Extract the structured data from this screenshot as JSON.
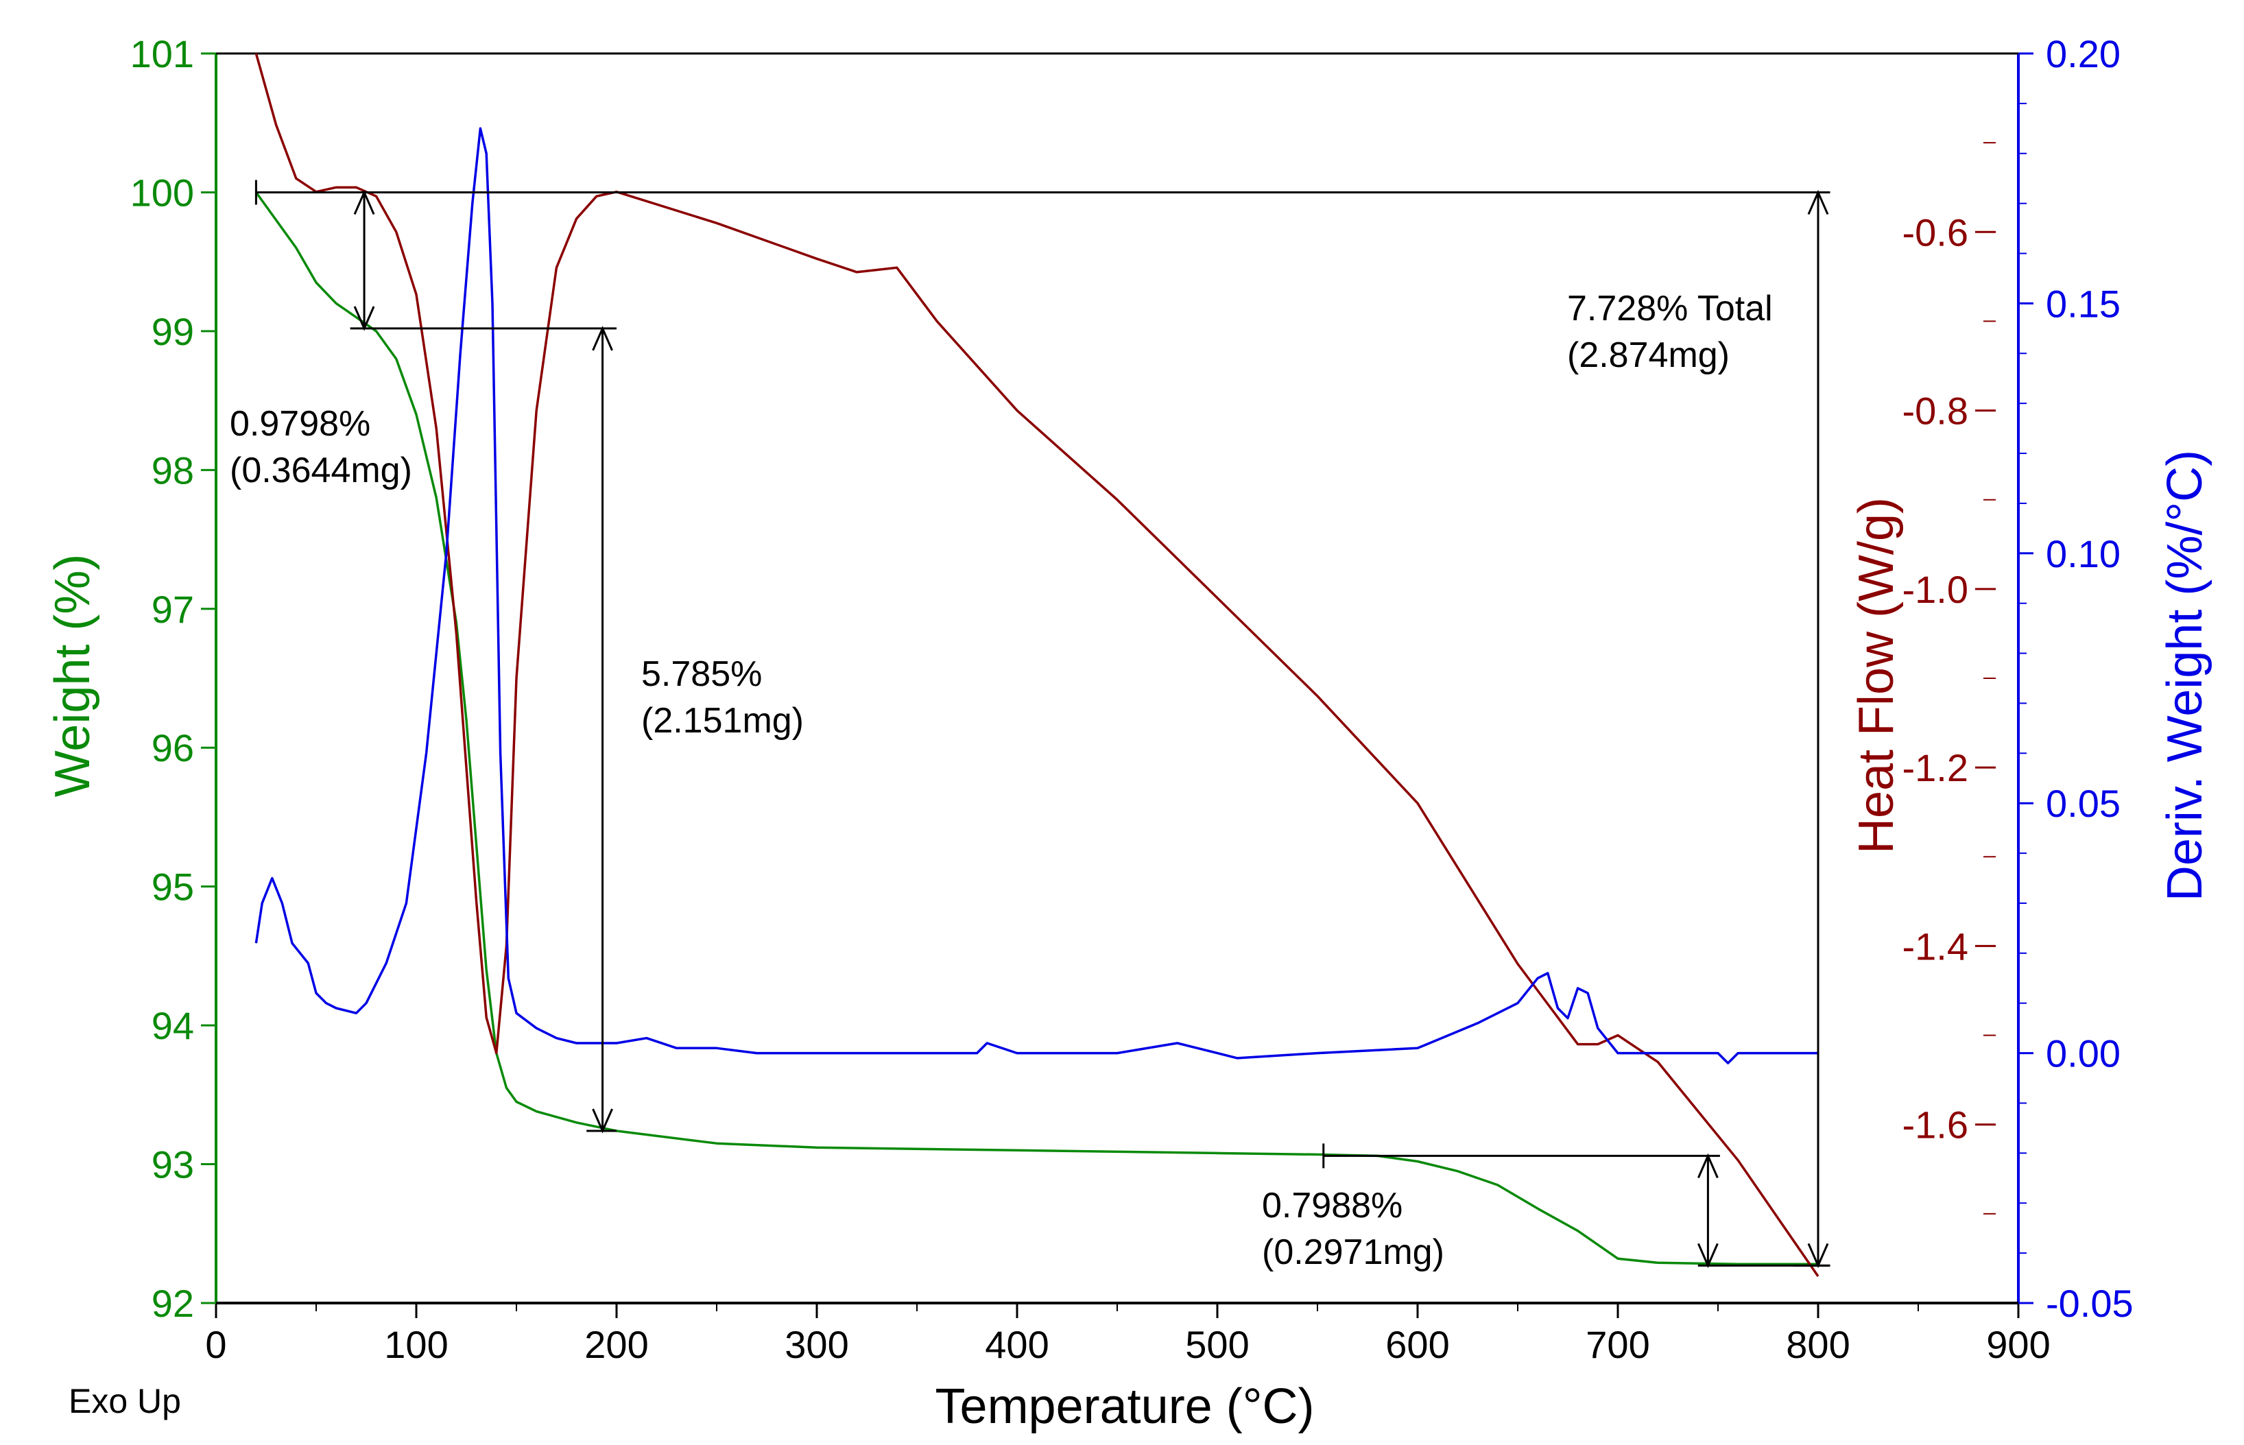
{
  "chart_data": {
    "type": "line",
    "corner_label": "Exo Up",
    "colors": {
      "weight": "#0a8a0a",
      "heat_flow": "#8b0000",
      "deriv": "#0000e6",
      "annotation": "#000000"
    },
    "x_axis": {
      "title": "Temperature (°C)",
      "range": [
        0,
        900
      ],
      "ticks": [
        0,
        100,
        200,
        300,
        400,
        500,
        600,
        700,
        800,
        900
      ],
      "tick_labels": [
        "0",
        "100",
        "200",
        "300",
        "400",
        "500",
        "600",
        "700",
        "800",
        "900"
      ]
    },
    "y_left": {
      "title": "Weight (%)",
      "range": [
        92,
        101
      ],
      "ticks": [
        92,
        93,
        94,
        95,
        96,
        97,
        98,
        99,
        100,
        101
      ],
      "tick_labels": [
        "92",
        "93",
        "94",
        "95",
        "96",
        "97",
        "98",
        "99",
        "100",
        "101"
      ]
    },
    "y_right_heat": {
      "title": "Heat Flow (W/g)",
      "range": [
        -1.8,
        -0.4
      ],
      "ticks": [
        -1.6,
        -1.4,
        -1.2,
        -1.0,
        -0.8,
        -0.6
      ],
      "tick_labels": [
        "-1.6",
        "-1.4",
        "-1.2",
        "-1.0",
        "-0.8",
        "-0.6"
      ]
    },
    "y_right_deriv": {
      "title": "Deriv. Weight (%/°C)",
      "range": [
        -0.05,
        0.2
      ],
      "ticks": [
        -0.05,
        0.0,
        0.05,
        0.1,
        0.15,
        0.2
      ],
      "tick_labels": [
        "-0.05",
        "0.00",
        "0.05",
        "0.10",
        "0.15",
        "0.20"
      ]
    },
    "series": [
      {
        "name": "Weight",
        "axis": "y_left",
        "x": [
          20,
          30,
          40,
          50,
          60,
          70,
          80,
          90,
          100,
          110,
          120,
          125,
          130,
          135,
          140,
          145,
          150,
          160,
          180,
          200,
          250,
          300,
          400,
          500,
          550,
          580,
          600,
          620,
          640,
          660,
          680,
          700,
          720,
          760,
          800
        ],
        "y": [
          100.0,
          99.8,
          99.6,
          99.35,
          99.2,
          99.1,
          99.0,
          98.8,
          98.4,
          97.8,
          96.9,
          96.2,
          95.3,
          94.4,
          93.8,
          93.55,
          93.45,
          93.38,
          93.3,
          93.24,
          93.15,
          93.12,
          93.1,
          93.08,
          93.07,
          93.06,
          93.02,
          92.95,
          92.85,
          92.68,
          92.52,
          92.32,
          92.29,
          92.28,
          92.28
        ]
      },
      {
        "name": "Heat Flow",
        "axis": "y_right_heat",
        "x": [
          20,
          30,
          40,
          50,
          60,
          70,
          80,
          90,
          100,
          110,
          120,
          130,
          135,
          140,
          145,
          150,
          160,
          170,
          180,
          190,
          200,
          250,
          300,
          320,
          340,
          360,
          400,
          450,
          500,
          550,
          600,
          650,
          670,
          680,
          690,
          700,
          720,
          760,
          800
        ],
        "y": [
          -0.4,
          -0.48,
          -0.54,
          -0.555,
          -0.55,
          -0.55,
          -0.56,
          -0.6,
          -0.67,
          -0.82,
          -1.05,
          -1.35,
          -1.48,
          -1.52,
          -1.4,
          -1.1,
          -0.8,
          -0.64,
          -0.585,
          -0.56,
          -0.555,
          -0.59,
          -0.63,
          -0.645,
          -0.64,
          -0.7,
          -0.8,
          -0.9,
          -1.01,
          -1.12,
          -1.24,
          -1.42,
          -1.48,
          -1.51,
          -1.51,
          -1.5,
          -1.53,
          -1.64,
          -1.77
        ]
      },
      {
        "name": "Deriv. Weight",
        "axis": "y_right_deriv",
        "x": [
          20,
          23,
          28,
          33,
          38,
          42,
          46,
          50,
          55,
          60,
          70,
          75,
          85,
          95,
          105,
          115,
          122,
          128,
          132,
          135,
          138,
          142,
          146,
          150,
          160,
          170,
          180,
          200,
          215,
          230,
          250,
          270,
          300,
          350,
          380,
          385,
          400,
          450,
          480,
          500,
          510,
          550,
          600,
          630,
          650,
          660,
          665,
          670,
          675,
          680,
          685,
          690,
          700,
          750,
          755,
          760,
          800
        ],
        "y": [
          0.022,
          0.03,
          0.035,
          0.03,
          0.022,
          0.02,
          0.018,
          0.012,
          0.01,
          0.009,
          0.008,
          0.01,
          0.018,
          0.03,
          0.06,
          0.1,
          0.14,
          0.17,
          0.185,
          0.18,
          0.15,
          0.06,
          0.015,
          0.008,
          0.005,
          0.003,
          0.002,
          0.002,
          0.003,
          0.001,
          0.001,
          0.0,
          0.0,
          0.0,
          0.0,
          0.002,
          0.0,
          0.0,
          0.002,
          0.0,
          -0.001,
          0.0,
          0.001,
          0.006,
          0.01,
          0.015,
          0.016,
          0.009,
          0.007,
          0.013,
          0.012,
          0.005,
          0.0,
          0.0,
          -0.002,
          0.0,
          0.0
        ]
      }
    ],
    "annotations": [
      {
        "text": "0.9798%",
        "text2": "(0.3644mg)",
        "from_weight": 100.0,
        "to_weight": 99.02,
        "at_temp": 74,
        "bar_from_temp": 20,
        "bar_to_temp": 74,
        "bottom_bar_from": 67,
        "bottom_bar_to": 200
      },
      {
        "text": "5.785%",
        "text2": "(2.151mg)",
        "from_weight": 99.02,
        "to_weight": 93.24,
        "at_temp": 193,
        "bottom_bar_from": 185,
        "bottom_bar_to": 200
      },
      {
        "text": "0.7988%",
        "text2": "(0.2971mg)",
        "from_weight": 93.06,
        "to_weight": 92.27,
        "at_temp": 745,
        "bar_from_temp": 553,
        "bar_to_temp": 745,
        "bottom_bar_from": 740,
        "bottom_bar_to": 806
      },
      {
        "text": "7.728% Total",
        "text2": "(2.874mg)",
        "from_weight": 100.0,
        "to_weight": 92.27,
        "at_temp": 800,
        "top_bar_from": 20,
        "top_bar_to": 806,
        "bottom_bar_from": 800,
        "bottom_bar_to": 806
      }
    ]
  }
}
